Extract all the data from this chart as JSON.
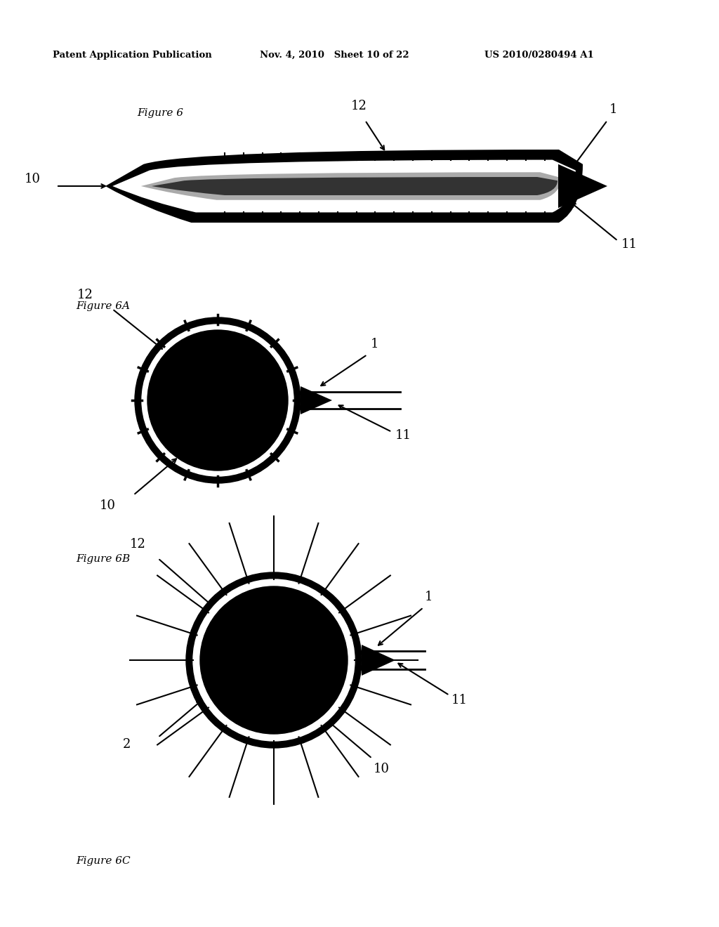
{
  "header_left": "Patent Application Publication",
  "header_mid": "Nov. 4, 2010   Sheet 10 of 22",
  "header_right": "US 2010/0280494 A1",
  "fig6_label": "Figure 6",
  "fig6a_label": "Figure 6A",
  "fig6b_label": "Figure 6B",
  "fig6c_label": "Figure 6C",
  "background": "#ffffff",
  "black": "#000000",
  "white": "#ffffff",
  "gray_light": "#cccccc",
  "gray_mid": "#888888"
}
